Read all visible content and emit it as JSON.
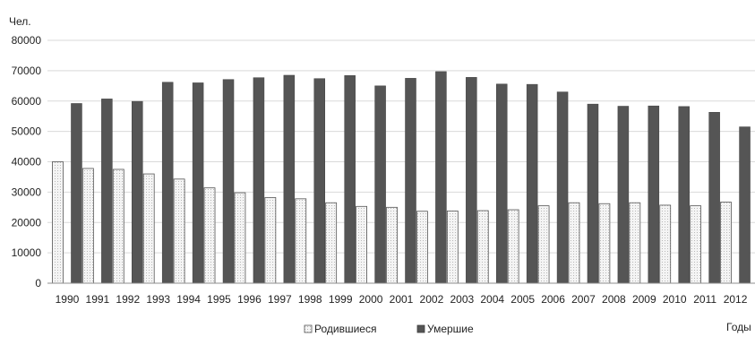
{
  "chart_data": {
    "type": "bar",
    "ylabel": "Чел.",
    "xlabel": "Годы",
    "ylim": [
      0,
      80000
    ],
    "ytick_step": 10000,
    "yticks": [
      "0",
      "10000",
      "20000",
      "30000",
      "40000",
      "50000",
      "60000",
      "70000",
      "80000"
    ],
    "grid": true,
    "legend_position": "bottom-center",
    "categories": [
      "1990",
      "1991",
      "1992",
      "1993",
      "1994",
      "1995",
      "1996",
      "1997",
      "1998",
      "1999",
      "2000",
      "2001",
      "2002",
      "2003",
      "2004",
      "2005",
      "2006",
      "2007",
      "2008",
      "2009",
      "2010",
      "2011",
      "2012"
    ],
    "series": [
      {
        "name": "Родившиеся",
        "color": "#f2f2f2",
        "values": [
          40000,
          37800,
          37500,
          36000,
          34300,
          31400,
          29800,
          28200,
          27800,
          26500,
          25300,
          25000,
          23700,
          23800,
          23900,
          24200,
          25500,
          26500,
          26200,
          26500,
          25700,
          25500,
          26700
        ]
      },
      {
        "name": "Умершие",
        "color": "#555555",
        "values": [
          59200,
          60700,
          59900,
          66200,
          66000,
          67100,
          67700,
          68500,
          67400,
          68400,
          65000,
          67500,
          69700,
          67800,
          65600,
          65500,
          63000,
          59000,
          58300,
          58400,
          58200,
          56300,
          51500
        ]
      }
    ]
  }
}
